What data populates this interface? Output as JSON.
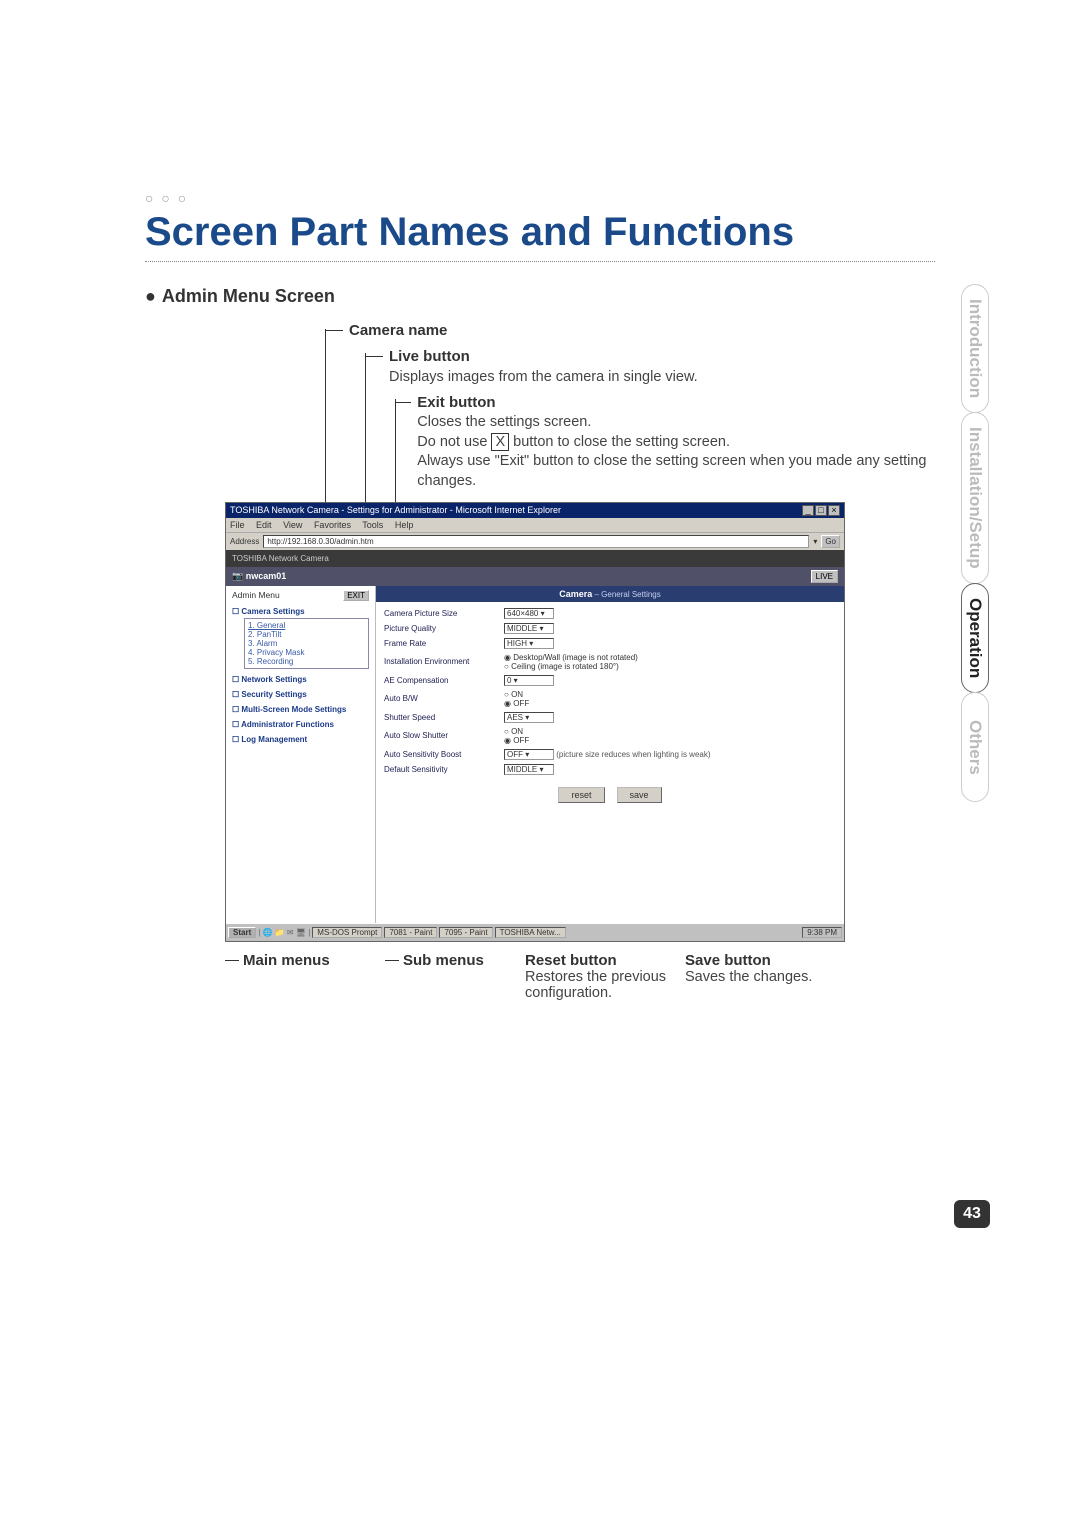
{
  "page_number": "43",
  "headline": "Screen Part Names and Functions",
  "bubbles_deco": "○ ○ ○",
  "section_label": "Admin Menu Screen",
  "tabs": {
    "intro": "Introduction",
    "install": "Installation/Setup",
    "operation": "Operation",
    "others": "Others"
  },
  "callouts": {
    "camera_name": {
      "title": "Camera name"
    },
    "live": {
      "title": "Live button",
      "desc": "Displays images from the camera in single view."
    },
    "exit": {
      "title": "Exit button",
      "desc1": "Closes the settings screen.",
      "desc2a": "Do not use ",
      "desc2_icon": "X",
      "desc2b": " button to close the setting screen.",
      "desc3": "Always use \"Exit\" button to close the setting screen when you made any setting changes."
    }
  },
  "bottom": {
    "main": {
      "title": "Main menus"
    },
    "sub": {
      "title": "Sub menus"
    },
    "reset": {
      "title": "Reset button",
      "desc": "Restores the previous configuration."
    },
    "save": {
      "title": "Save button",
      "desc": "Saves the changes."
    }
  },
  "screenshot": {
    "window_title": "TOSHIBA Network Camera - Settings for Administrator - Microsoft Internet Explorer",
    "menubar": [
      "File",
      "Edit",
      "View",
      "Favorites",
      "Tools",
      "Help"
    ],
    "address_label": "Address",
    "address_value": "http://192.168.0.30/admin.htm",
    "go": "Go",
    "brand": "TOSHIBA Network Camera",
    "camera_name": "nwcam01",
    "live_label": "LIVE",
    "sidebar": {
      "admin_menu": "Admin Menu",
      "exit": "EXIT",
      "groups": [
        {
          "title": "Camera Settings",
          "subs": [
            "1. General",
            "2. PanTilt",
            "3. Alarm",
            "4. Privacy Mask",
            "5. Recording"
          ]
        },
        {
          "title": "Network Settings"
        },
        {
          "title": "Security Settings"
        },
        {
          "title": "Multi-Screen Mode Settings"
        },
        {
          "title": "Administrator Functions"
        },
        {
          "title": "Log Management"
        }
      ]
    },
    "content": {
      "header_main": "Camera",
      "header_sub": " – General Settings",
      "rows": [
        {
          "label": "Camera Picture Size",
          "value": "640×480 ▾"
        },
        {
          "label": "Picture Quality",
          "value": "MIDDLE ▾"
        },
        {
          "label": "Frame Rate",
          "value": "HIGH ▾"
        },
        {
          "label": "Installation Environment",
          "radios": [
            "Desktop/Wall (image is not rotated)",
            "Ceiling (image is rotated 180°)"
          ],
          "selected": 0
        },
        {
          "label": "AE Compensation",
          "value": "0 ▾"
        },
        {
          "label": "Auto B/W",
          "radios": [
            "ON",
            "OFF"
          ],
          "selected": 1
        },
        {
          "label": "Shutter Speed",
          "value": "AES ▾"
        },
        {
          "label": "Auto Slow Shutter",
          "radios": [
            "ON",
            "OFF"
          ],
          "selected": 1
        },
        {
          "label": "Auto Sensitivity Boost",
          "value": "OFF ▾",
          "note": "(picture size reduces when lighting is weak)"
        },
        {
          "label": "Default Sensitivity",
          "value": "MIDDLE ▾"
        }
      ],
      "reset_btn": "reset",
      "save_btn": "save"
    },
    "taskbar": {
      "start": "Start",
      "items": [
        "MS-DOS Prompt",
        "7081 - Paint",
        "7095 - Paint",
        "TOSHIBA Netw..."
      ],
      "tray": "9:38 PM"
    }
  },
  "colors": {
    "headline": "#1a4a8a",
    "page_badge_bg": "#333333",
    "page_badge_fg": "#ffffff"
  }
}
